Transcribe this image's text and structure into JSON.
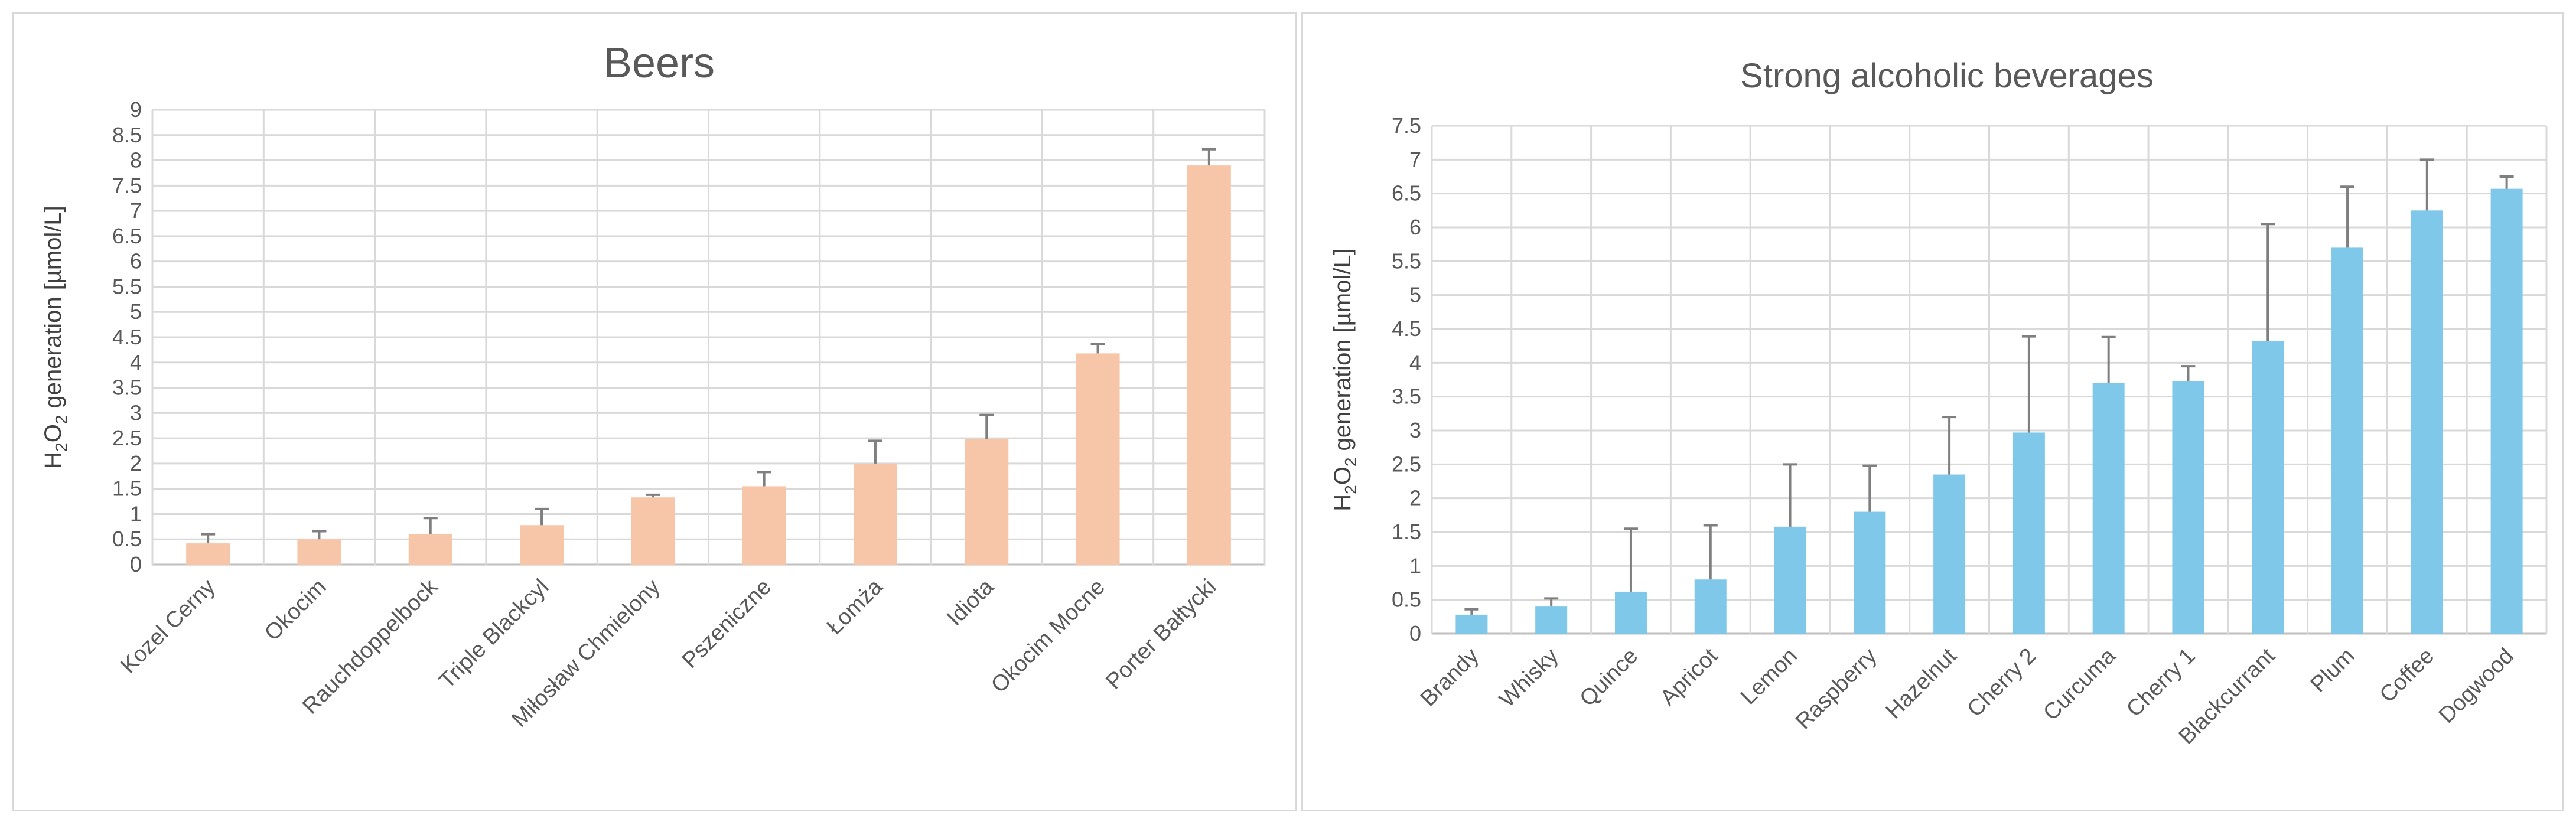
{
  "chart_data": [
    {
      "type": "bar",
      "title": "Beers",
      "ylabel_parts": [
        "H",
        "2",
        "O",
        "2",
        " generation [µmol/L]"
      ],
      "ylim": [
        0,
        9
      ],
      "yticks": [
        "0",
        "0.5",
        "1",
        "1.5",
        "2",
        "2.5",
        "3",
        "3.5",
        "4",
        "4.5",
        "5",
        "5.5",
        "6",
        "6.5",
        "7",
        "7.5",
        "8",
        "8.5",
        "9"
      ],
      "categories": [
        "Kozel Cerny",
        "Okocim",
        "Rauchdoppelbock",
        "Triple Blackcyl",
        "Miłosław Chmielony",
        "Pszeniczne",
        "Łomża",
        "Idiota",
        "Okocim Mocne",
        "Porter Bałtycki"
      ],
      "values": [
        0.42,
        0.5,
        0.6,
        0.78,
        1.33,
        1.55,
        2.0,
        2.48,
        4.18,
        7.9
      ],
      "errors": [
        0.18,
        0.16,
        0.32,
        0.32,
        0.05,
        0.28,
        0.45,
        0.48,
        0.18,
        0.32
      ],
      "bar_color": "#f7c6a8",
      "grid": true
    },
    {
      "type": "bar",
      "title": "Strong alcoholic beverages",
      "ylabel_parts": [
        "H",
        "2",
        "O",
        "2",
        " generation [µmol/L]"
      ],
      "ylim": [
        0,
        7.5
      ],
      "yticks": [
        "0",
        "0.5",
        "1",
        "1.5",
        "2",
        "2.5",
        "3",
        "3.5",
        "4",
        "4.5",
        "5",
        "5.5",
        "6",
        "6.5",
        "7",
        "7.5"
      ],
      "categories": [
        "Brandy",
        "Whisky",
        "Quince",
        "Apricot",
        "Lemon",
        "Raspberry",
        "Hazelnut",
        "Cherry 2",
        "Curcuma",
        "Cherry 1",
        "Blackcurrant",
        "Plum",
        "Coffee",
        "Dogwood"
      ],
      "values": [
        0.28,
        0.4,
        0.62,
        0.8,
        1.58,
        1.8,
        2.35,
        2.97,
        3.7,
        3.73,
        4.32,
        5.7,
        6.25,
        6.57
      ],
      "errors": [
        0.08,
        0.12,
        0.93,
        0.8,
        0.92,
        0.68,
        0.85,
        1.42,
        0.68,
        0.22,
        1.73,
        0.9,
        0.75,
        0.18
      ],
      "bar_color": "#7fc8ea",
      "grid": true
    }
  ]
}
